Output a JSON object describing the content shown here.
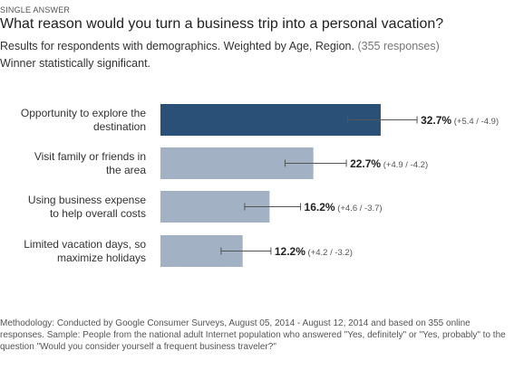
{
  "header": {
    "kicker": "SINGLE ANSWER",
    "title": "What reason would you turn a business trip into a personal vacation?",
    "subtitle": "Results for respondents with demographics. Weighted by Age, Region.",
    "responses": "(355 responses)",
    "winner_note": "Winner statistically significant."
  },
  "chart_data": {
    "type": "bar",
    "orientation": "horizontal",
    "categories": [
      "Opportunity to explore the destination",
      "Visit family or friends in the area",
      "Using business expense to help overall costs",
      "Limited vacation days, so maximize holidays"
    ],
    "label_lines": [
      [
        "Opportunity to explore the",
        "destination"
      ],
      [
        "Visit family or friends in",
        "the area"
      ],
      [
        "Using business expense",
        "to help overall costs"
      ],
      [
        "Limited vacation days, so",
        "maximize holidays"
      ]
    ],
    "values": [
      32.7,
      22.7,
      16.2,
      12.2
    ],
    "value_labels": [
      "32.7%",
      "22.7%",
      "16.2%",
      "12.2%"
    ],
    "error_plus": [
      5.4,
      4.9,
      4.6,
      4.2
    ],
    "error_minus": [
      4.9,
      4.2,
      3.7,
      3.2
    ],
    "error_labels": [
      "(+5.4 / -4.9)",
      "(+4.9 / -4.2)",
      "(+4.6 / -3.7)",
      "(+4.2 / -3.2)"
    ],
    "unit": "%",
    "colors": {
      "winner": "#2b5077",
      "other": "#a2b1c4",
      "error_bar": "#555555"
    }
  },
  "footer": {
    "methodology": "Methodology: Conducted by Google Consumer Surveys, August 05, 2014 - August 12, 2014 and based on 355 online responses. Sample: People from the national adult Internet population who answered \"Yes, definitely\" or \"Yes, probably\" to the question \"Would you consider yourself a frequent business traveler?\""
  }
}
